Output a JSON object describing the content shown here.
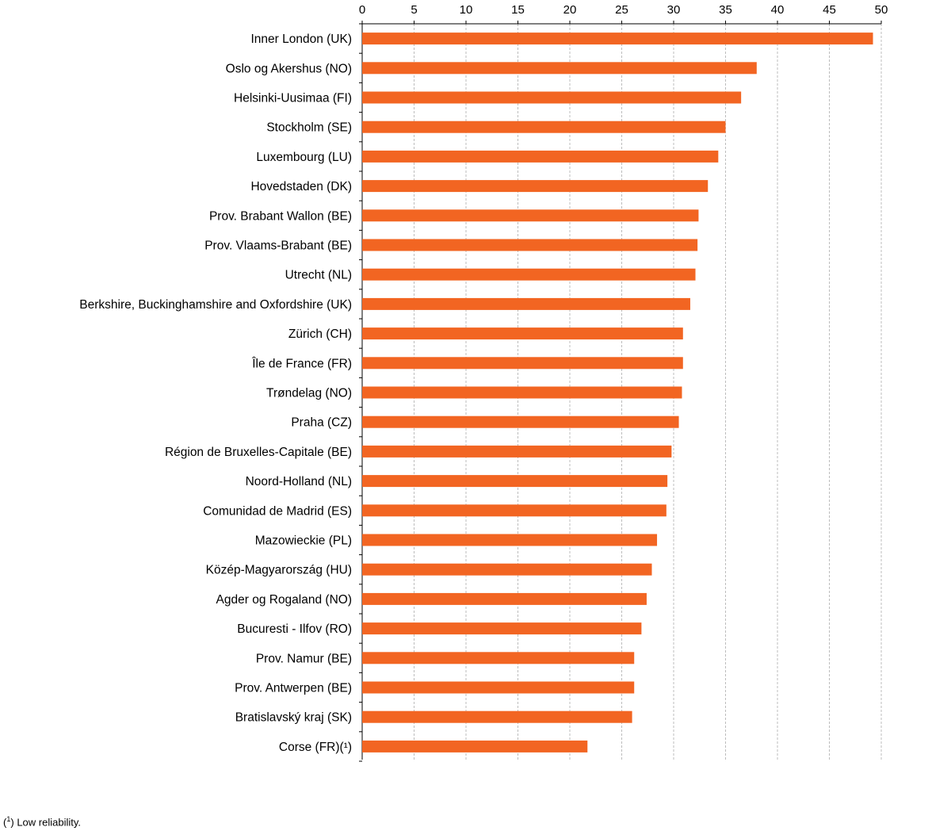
{
  "chart_data": {
    "type": "bar",
    "orientation": "horizontal",
    "categories": [
      "Inner London (UK)",
      "Oslo og Akershus (NO)",
      "Helsinki-Uusimaa (FI)",
      "Stockholm (SE)",
      "Luxembourg (LU)",
      "Hovedstaden (DK)",
      "Prov. Brabant Wallon (BE)",
      "Prov. Vlaams-Brabant (BE)",
      "Utrecht (NL)",
      "Berkshire, Buckinghamshire and Oxfordshire (UK)",
      "Zürich (CH)",
      "Île de France (FR)",
      "Trøndelag (NO)",
      "Praha (CZ)",
      "Région de Bruxelles-Capitale (BE)",
      "Noord-Holland (NL)",
      "Comunidad de Madrid (ES)",
      "Mazowieckie (PL)",
      "Közép-Magyarország (HU)",
      "Agder og Rogaland (NO)",
      "Bucuresti - Ilfov (RO)",
      "Prov. Namur (BE)",
      "Prov. Antwerpen (BE)",
      "Bratislavský kraj (SK)",
      "Corse (FR)(¹)"
    ],
    "values": [
      49.2,
      38.0,
      36.5,
      35.0,
      34.3,
      33.3,
      32.4,
      32.3,
      32.1,
      31.6,
      30.9,
      30.9,
      30.8,
      30.5,
      29.8,
      29.4,
      29.3,
      28.4,
      27.9,
      27.4,
      26.9,
      26.2,
      26.2,
      26.0,
      21.7
    ],
    "xlim": [
      0,
      50
    ],
    "xticks": [
      "0",
      "5",
      "10",
      "15",
      "20",
      "25",
      "30",
      "35",
      "40",
      "45",
      "50"
    ],
    "axis_position": "top",
    "grid": "vertical dashed",
    "bar_color": "#f26522",
    "title": "",
    "xlabel": "",
    "ylabel": ""
  },
  "footnote": {
    "marker": "1",
    "text": " Low reliability."
  }
}
